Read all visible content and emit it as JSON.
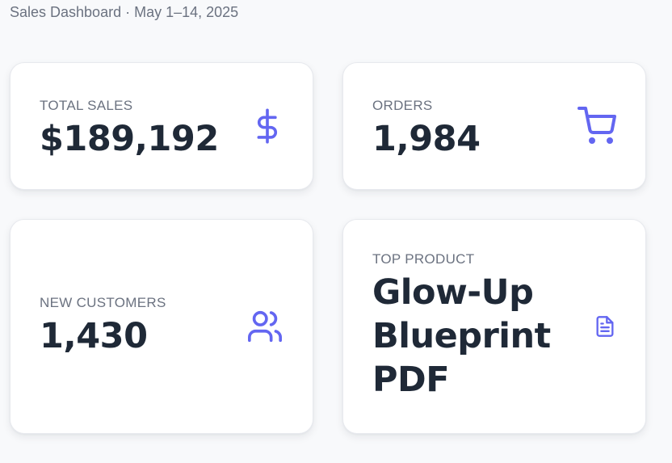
{
  "header": {
    "subtitle": "Sales Dashboard · May 1–14, 2025"
  },
  "cards": [
    {
      "label": "TOTAL SALES",
      "value": "$189,192",
      "icon": "dollar-icon"
    },
    {
      "label": "ORDERS",
      "value": "1,984",
      "icon": "shopping-cart-icon"
    },
    {
      "label": "NEW CUSTOMERS",
      "value": "1,430",
      "icon": "users-icon"
    },
    {
      "label": "TOP PRODUCT",
      "value": "Glow-Up Blueprint PDF",
      "icon": "document-icon"
    }
  ],
  "colors": {
    "accent": "#6366f1",
    "value_text": "#1f2937",
    "label_text": "#6b7280",
    "background": "#f8f9fb",
    "card_background": "#ffffff"
  }
}
